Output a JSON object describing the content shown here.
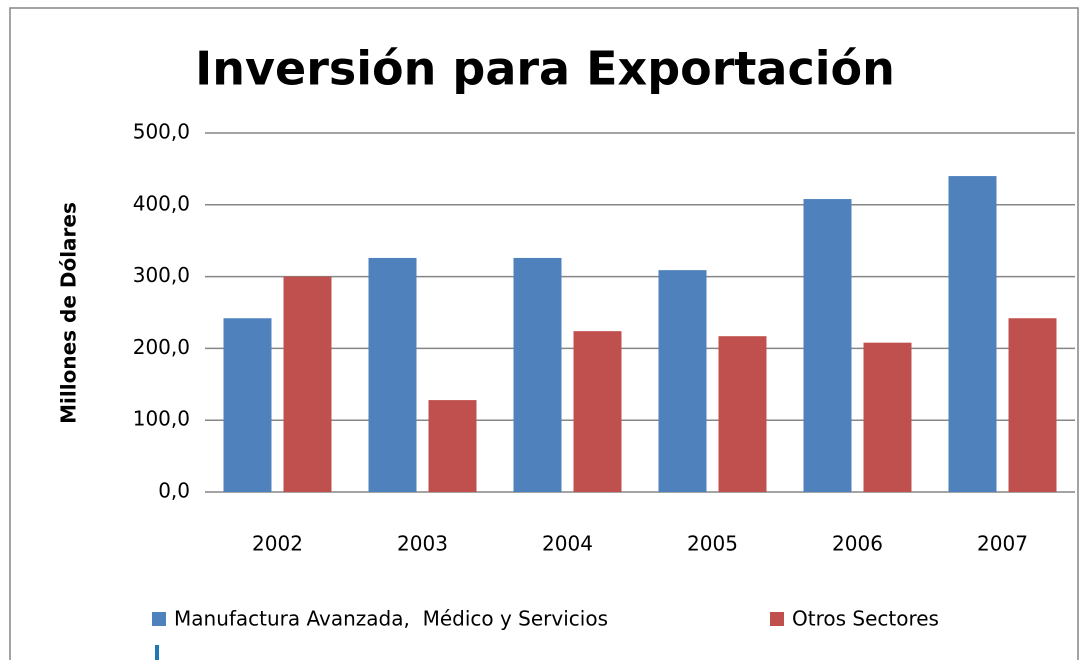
{
  "chart_data": {
    "type": "bar",
    "title": "Inversión para Exportación",
    "y_label": "Millones de Dólares",
    "categories": [
      "2002",
      "2003",
      "2004",
      "2005",
      "2006",
      "2007"
    ],
    "series": [
      {
        "name": "Manufactura Avanzada,  Médico y Servicios",
        "color": "#4f81bd",
        "values": [
          242,
          326,
          326,
          309,
          408,
          440
        ]
      },
      {
        "name": "Otros Sectores",
        "color": "#c0504d",
        "values": [
          300,
          128,
          224,
          217,
          208,
          242
        ]
      }
    ],
    "ylim": [
      0,
      500
    ],
    "yticks": [
      {
        "value": 0,
        "label": "0,0"
      },
      {
        "value": 100,
        "label": "100,0"
      },
      {
        "value": 200,
        "label": "200,0"
      },
      {
        "value": 300,
        "label": "300,0"
      },
      {
        "value": 400,
        "label": "400,0"
      },
      {
        "value": 500,
        "label": "500,0"
      }
    ],
    "grid": true,
    "legend": "bottom"
  }
}
